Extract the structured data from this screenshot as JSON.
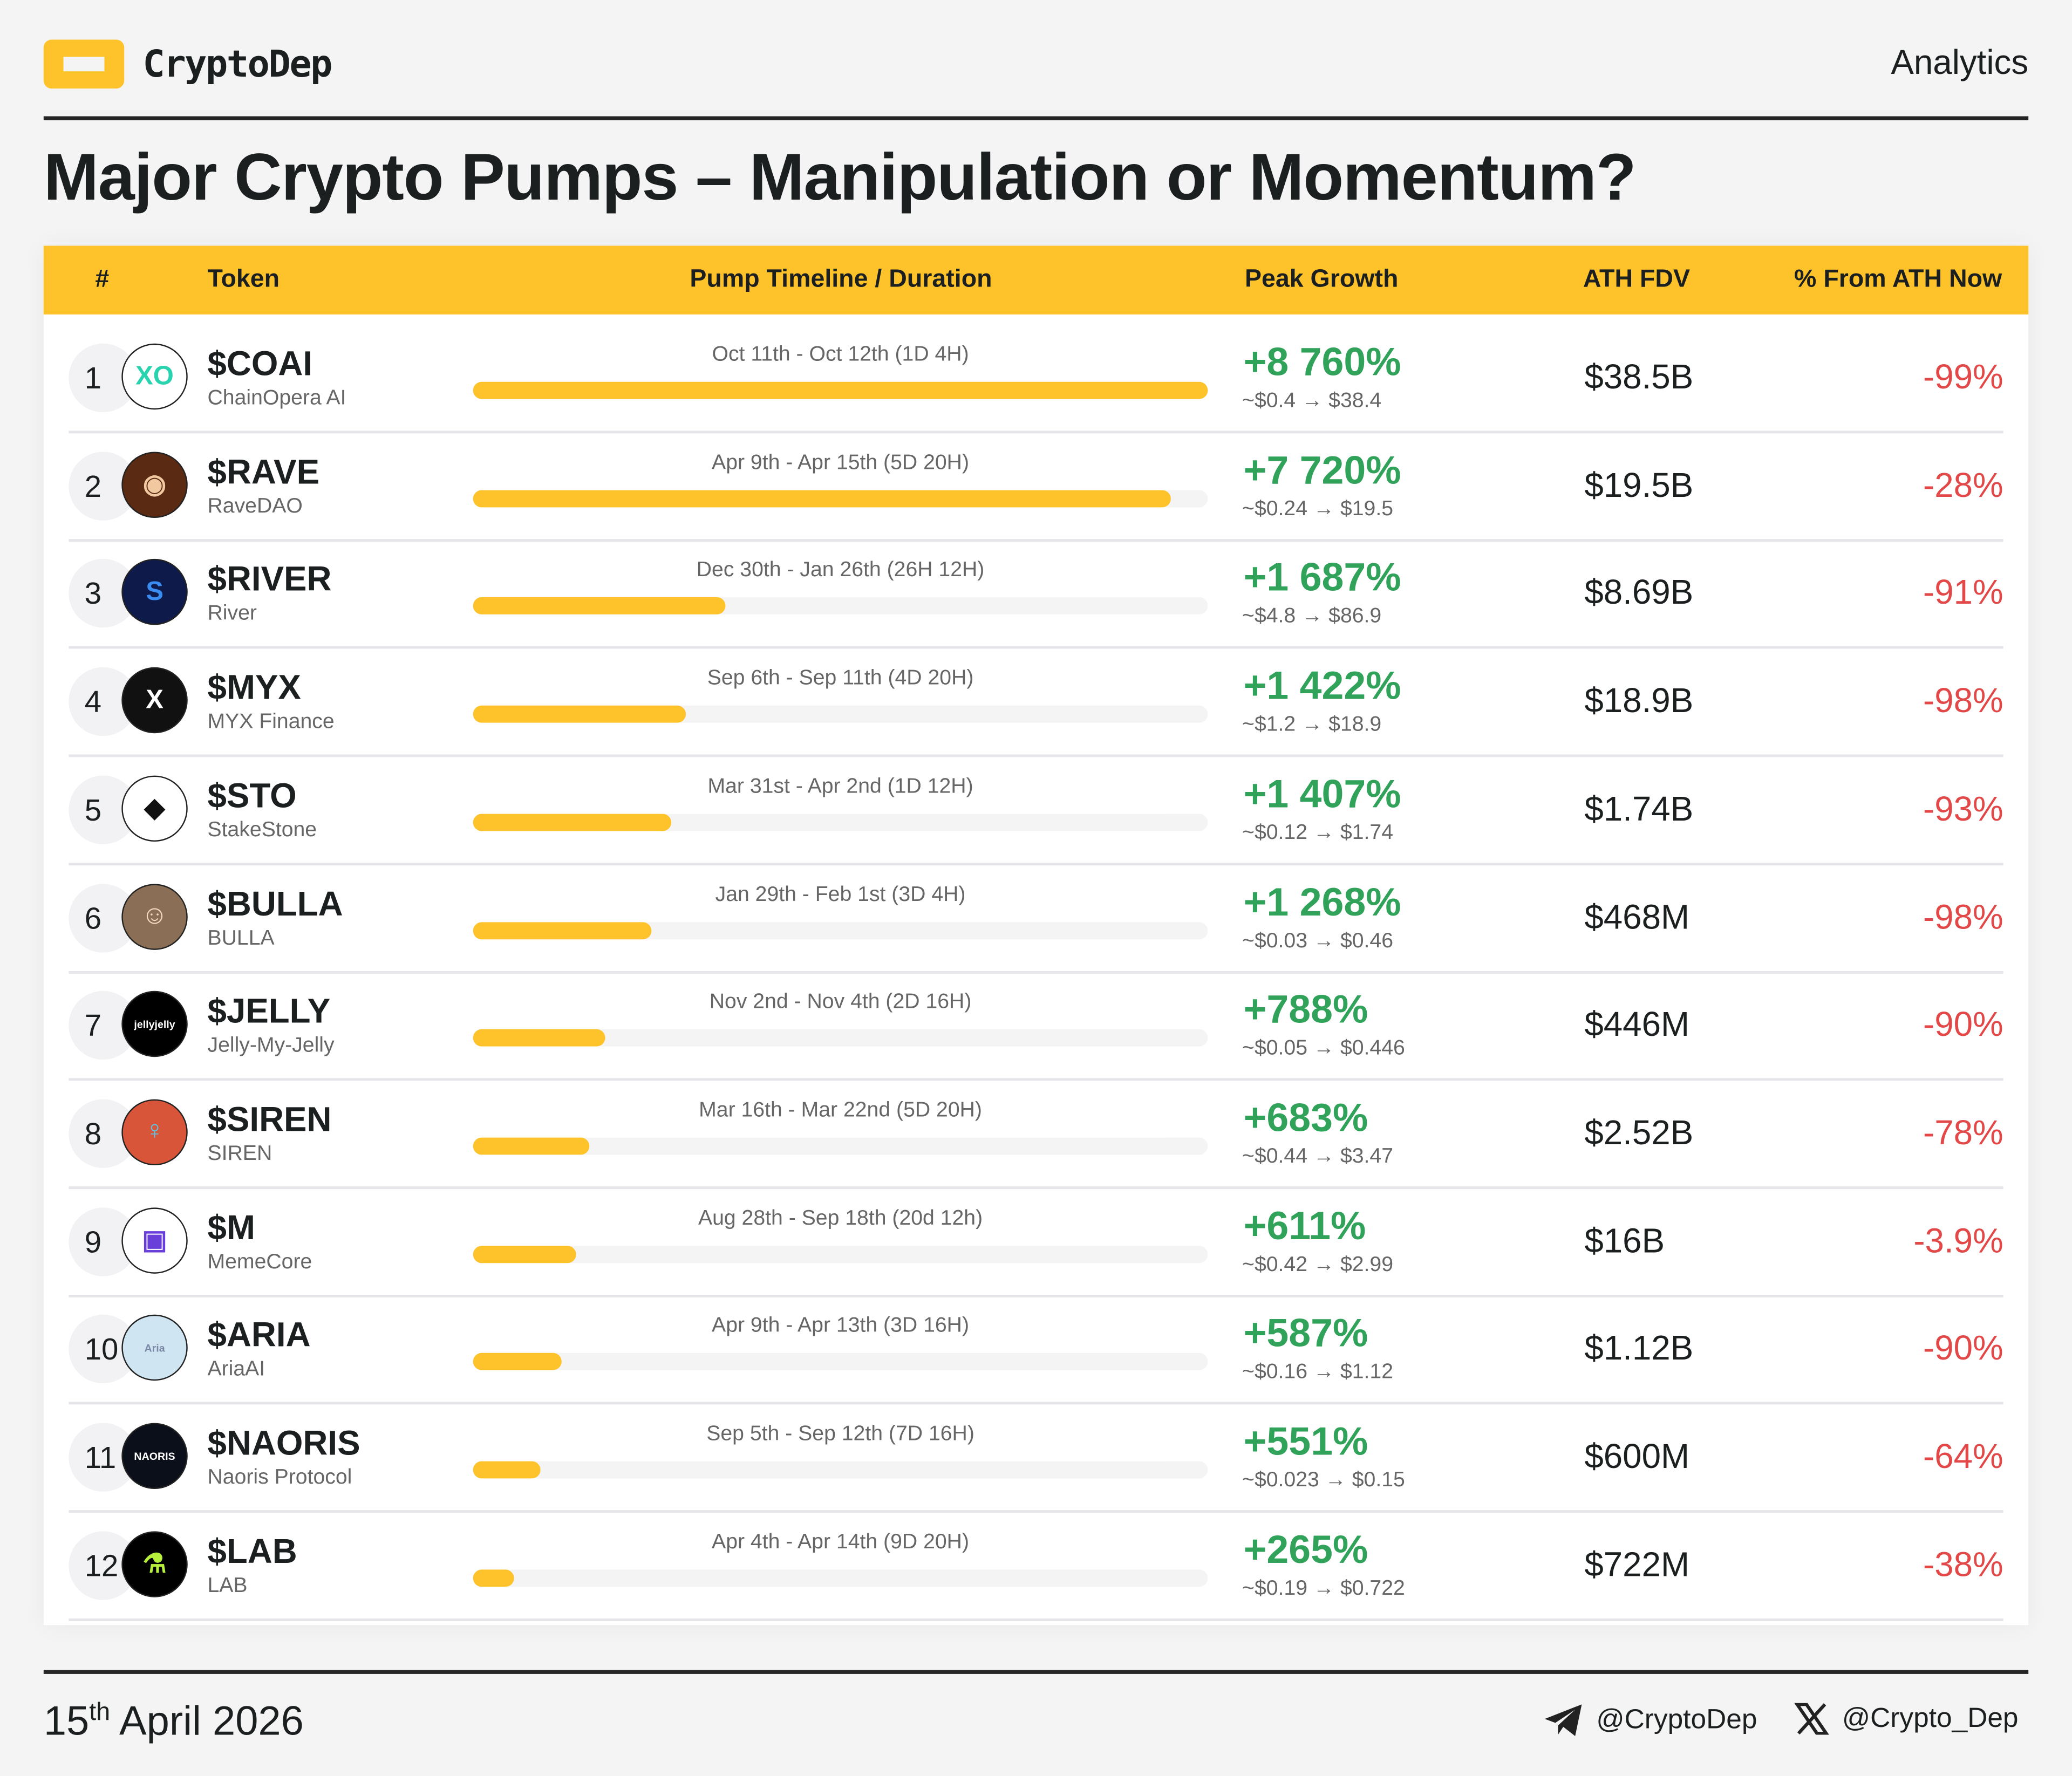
{
  "header": {
    "brand": "CryptoDep",
    "section": "Analytics"
  },
  "title": "Major Crypto Pumps – Manipulation or Momentum?",
  "columns": [
    "#",
    "Token",
    "Pump Timeline / Duration",
    "Peak Growth",
    "ATH FDV",
    "% From ATH Now"
  ],
  "rows": [
    {
      "rank": "1",
      "symbol": "$COAI",
      "name": "ChainOpera AI",
      "timeline": "Oct 11th - Oct 12th (1D 4H)",
      "bar": 1.0,
      "growth": "+8 760%",
      "range": "~$0.4 → $38.4",
      "fdv": "$38.5B",
      "ath": "-99%",
      "color": "#ffffff",
      "fg": "#29d3b0",
      "icon": "XO"
    },
    {
      "rank": "2",
      "symbol": "$RAVE",
      "name": "RaveDAO",
      "timeline": "Apr 9th - Apr 15th (5D 20H)",
      "bar": 0.95,
      "growth": "+7 720%",
      "range": "~$0.24 → $19.5",
      "fdv": "$19.5B",
      "ath": "-28%",
      "color": "#5a2a12",
      "fg": "#f1c9a0",
      "icon": "◉"
    },
    {
      "rank": "3",
      "symbol": "$RIVER",
      "name": "River",
      "timeline": "Dec 30th - Jan 26th (26H 12H)",
      "bar": 0.344,
      "growth": "+1 687%",
      "range": "~$4.8 → $86.9",
      "fdv": "$8.69B",
      "ath": "-91%",
      "color": "#0d1a4a",
      "fg": "#3b8cf0",
      "icon": "S"
    },
    {
      "rank": "4",
      "symbol": "$MYX",
      "name": "MYX Finance",
      "timeline": "Sep 6th - Sep 11th (4D 20H)",
      "bar": 0.29,
      "growth": "+1 422%",
      "range": "~$1.2 → $18.9",
      "fdv": "$18.9B",
      "ath": "-98%",
      "color": "#111111",
      "fg": "#ffffff",
      "icon": "X"
    },
    {
      "rank": "5",
      "symbol": "$STO",
      "name": "StakeStone",
      "timeline": "Mar 31st - Apr 2nd (1D 12H)",
      "bar": 0.27,
      "growth": "+1 407%",
      "range": "~$0.12 → $1.74",
      "fdv": "$1.74B",
      "ath": "-93%",
      "color": "#ffffff",
      "fg": "#111111",
      "icon": "◆"
    },
    {
      "rank": "6",
      "symbol": "$BULLA",
      "name": "BULLA",
      "timeline": "Jan 29th - Feb 1st (3D 4H)",
      "bar": 0.243,
      "growth": "+1 268%",
      "range": "~$0.03 → $0.46",
      "fdv": "$468M",
      "ath": "-98%",
      "color": "#8a6e55",
      "fg": "#f3d9c0",
      "icon": "☺"
    },
    {
      "rank": "7",
      "symbol": "$JELLY",
      "name": "Jelly-My-Jelly",
      "timeline": "Nov 2nd - Nov 4th (2D 16H)",
      "bar": 0.18,
      "growth": "+788%",
      "range": "~$0.05 → $0.446",
      "fdv": "$446M",
      "ath": "-90%",
      "color": "#000000",
      "fg": "#ffffff",
      "icon": "jellyjelly"
    },
    {
      "rank": "8",
      "symbol": "$SIREN",
      "name": "SIREN",
      "timeline": "Mar 16th - Mar 22nd (5D 20H)",
      "bar": 0.159,
      "growth": "+683%",
      "range": "~$0.44 → $3.47",
      "fdv": "$2.52B",
      "ath": "-78%",
      "color": "#d9553a",
      "fg": "#5cc4e8",
      "icon": "♀"
    },
    {
      "rank": "9",
      "symbol": "$M",
      "name": "MemeCore",
      "timeline": "Aug 28th - Sep 18th (20d 12h)",
      "bar": 0.14,
      "growth": "+611%",
      "range": "~$0.42 → $2.99",
      "fdv": "$16B",
      "ath": "-3.9%",
      "color": "#ffffff",
      "fg": "#6a3fd9",
      "icon": "▣"
    },
    {
      "rank": "10",
      "symbol": "$ARIA",
      "name": "AriaAI",
      "timeline": "Apr 9th - Apr 13th (3D 16H)",
      "bar": 0.12,
      "growth": "+587%",
      "range": "~$0.16 → $1.12",
      "fdv": "$1.12B",
      "ath": "-90%",
      "color": "#cfe6f2",
      "fg": "#7a88a8",
      "icon": "Aria"
    },
    {
      "rank": "11",
      "symbol": "$NAORIS",
      "name": "Naoris Protocol",
      "timeline": "Sep 5th - Sep 12th (7D 16H)",
      "bar": 0.092,
      "growth": "+551%",
      "range": "~$0.023 → $0.15",
      "fdv": "$600M",
      "ath": "-64%",
      "color": "#0b0f1a",
      "fg": "#ffffff",
      "icon": "NAORIS"
    },
    {
      "rank": "12",
      "symbol": "$LAB",
      "name": "LAB",
      "timeline": "Apr 4th - Apr 14th (9D 20H)",
      "bar": 0.056,
      "growth": "+265%",
      "range": "~$0.19 → $0.722",
      "fdv": "$722M",
      "ath": "-38%",
      "color": "#000000",
      "fg": "#b6f03c",
      "icon": "⚗"
    }
  ],
  "footer": {
    "date_day": "15",
    "date_suffix": "th",
    "date_rest": "April 2026",
    "telegram": "@CryptoDep",
    "x": "@Crypto_Dep"
  }
}
